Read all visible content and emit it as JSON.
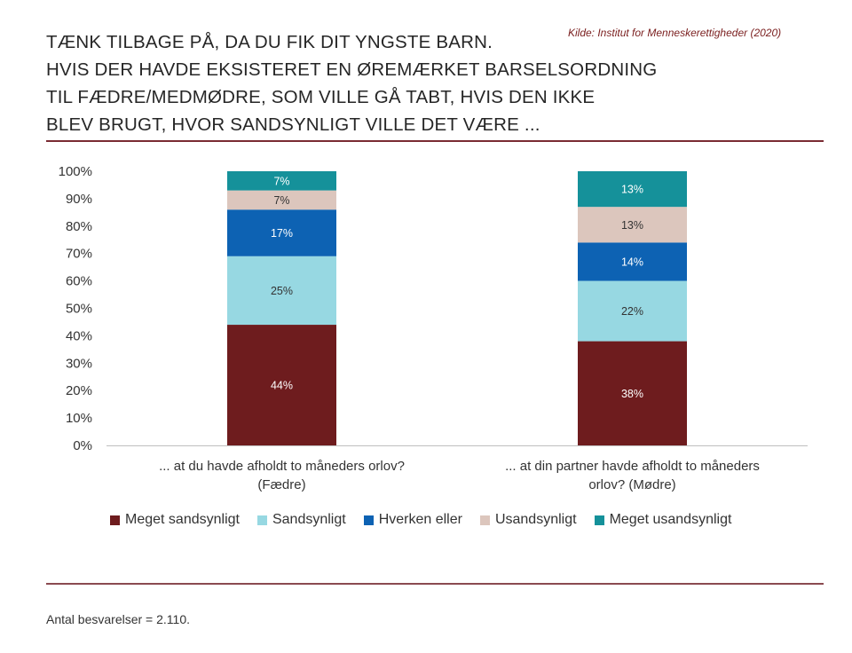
{
  "title_lines": [
    "TÆNK TILBAGE PÅ, DA DU FIK DIT YNGSTE BARN.",
    "HVIS DER HAVDE EKSISTERET EN ØREMÆRKET BARSELSORDNING",
    "TIL FÆDRE/MEDMØDRE, SOM VILLE GÅ TABT, HVIS DEN IKKE",
    "BLEV BRUGT, HVOR SANDSYNLIGT VILLE DET VÆRE ..."
  ],
  "source": "Kilde: Institut for Menneskerettigheder (2020)",
  "footnote": "Antal besvarelser = 2.110.",
  "colors": {
    "meget_sandsynligt": "#6e1c1e",
    "sandsynligt": "#97d8e2",
    "hverken_eller": "#0d62b3",
    "usandsynligt": "#dcc6bd",
    "meget_usandsynligt": "#15919a"
  },
  "chart_data": {
    "type": "bar",
    "stacked": true,
    "categories": [
      "... at du havde afholdt to måneders orlov? (Fædre)",
      "... at din partner havde afholdt to måneders orlov? (Mødre)"
    ],
    "category_lines": [
      [
        "... at du havde afholdt to måneders orlov?",
        "(Fædre)"
      ],
      [
        "... at din partner havde afholdt to måneders",
        "orlov? (Mødre)"
      ]
    ],
    "series": [
      {
        "name": "Meget sandsynligt",
        "color": "#6e1c1e",
        "values": [
          44,
          38
        ],
        "labels": [
          "44%",
          "38%"
        ]
      },
      {
        "name": "Sandsynligt",
        "color": "#97d8e2",
        "values": [
          25,
          22
        ],
        "labels": [
          "25%",
          "22%"
        ]
      },
      {
        "name": "Hverken eller",
        "color": "#0d62b3",
        "values": [
          17,
          14
        ],
        "labels": [
          "17%",
          "14%"
        ]
      },
      {
        "name": "Usandsynligt",
        "color": "#dcc6bd",
        "values": [
          7,
          13
        ],
        "labels": [
          "7%",
          "13%"
        ]
      },
      {
        "name": "Meget usandsynligt",
        "color": "#15919a",
        "values": [
          7,
          13
        ],
        "labels": [
          "7%",
          "13%"
        ]
      }
    ],
    "y_ticks": [
      "0%",
      "10%",
      "20%",
      "30%",
      "40%",
      "50%",
      "60%",
      "70%",
      "80%",
      "90%",
      "100%"
    ],
    "ylim": [
      0,
      100
    ],
    "legend_position": "bottom",
    "grid": false
  }
}
